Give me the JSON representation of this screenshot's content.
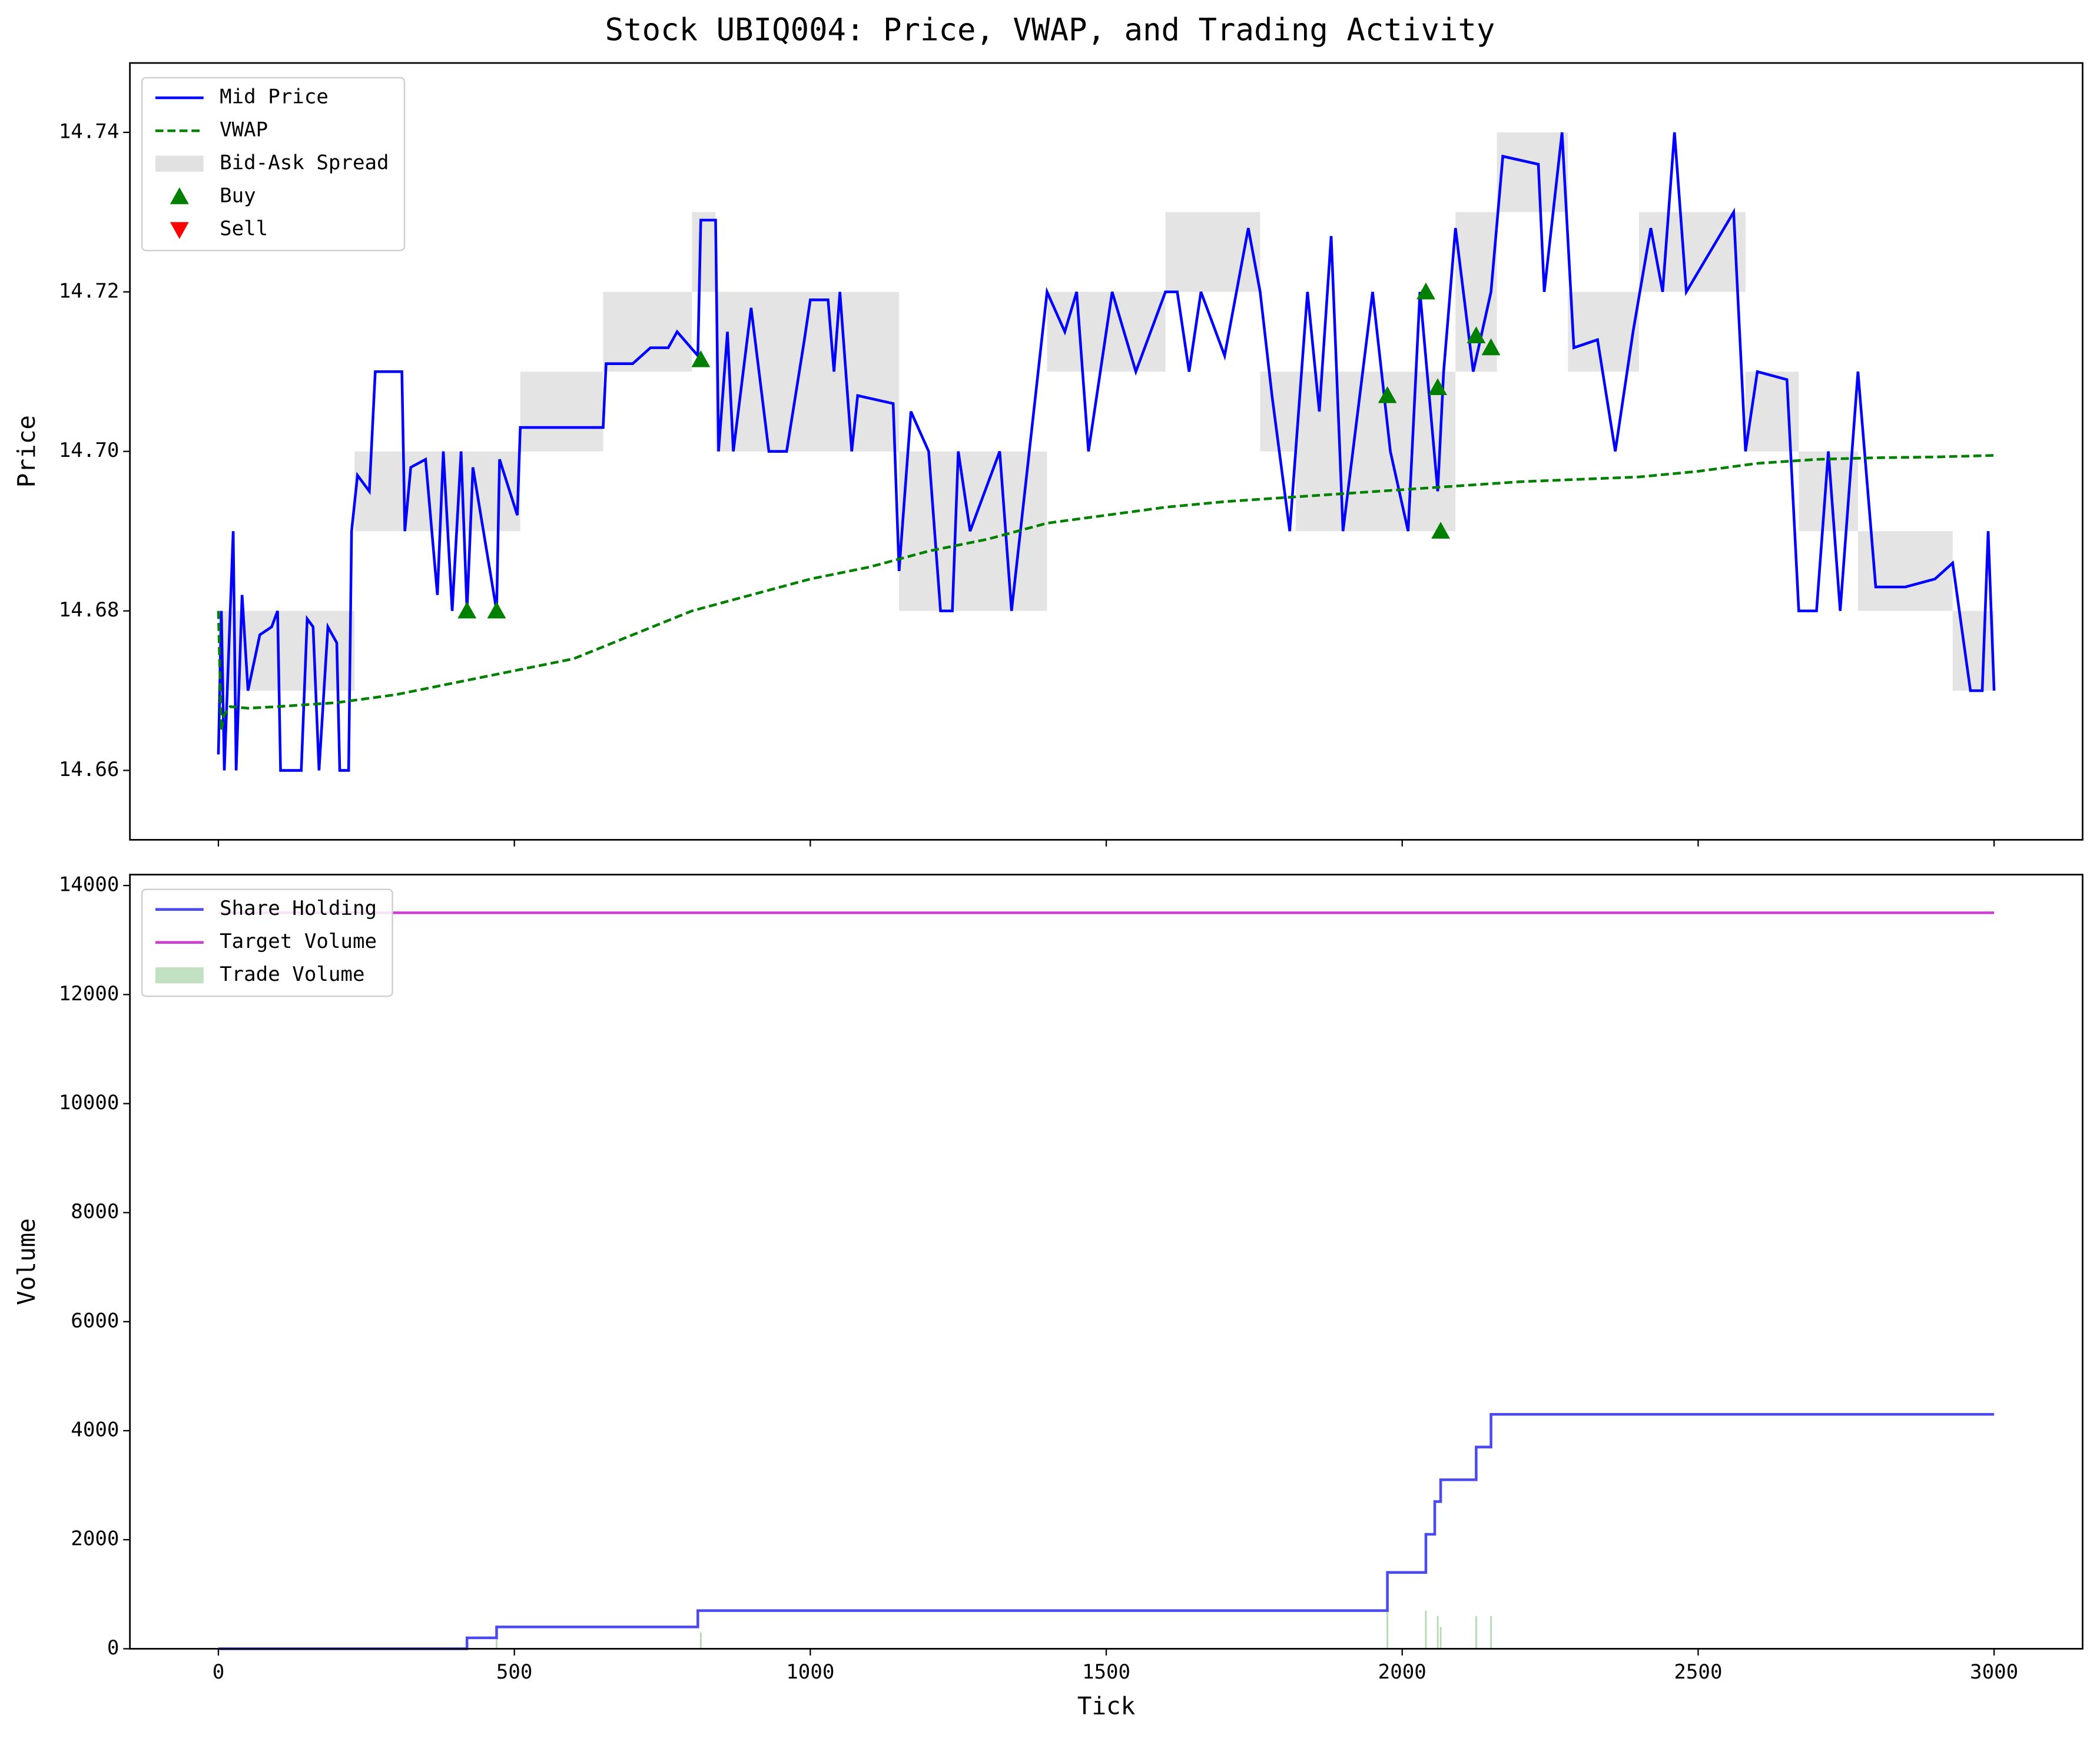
{
  "title": "Stock UBIQ004: Price, VWAP, and Trading Activity",
  "chart_data": [
    {
      "type": "line",
      "ylabel": "Price",
      "legend": "upper left",
      "show_xticklabels": false,
      "xlim": [
        -149.5,
        3149.5
      ],
      "ylim": [
        14.6513,
        14.7487
      ],
      "xticks": [
        0,
        500,
        1000,
        1500,
        2000,
        2500,
        3000
      ],
      "yticks": [
        14.66,
        14.68,
        {
          "value": 14.7,
          "label": "14.70"
        },
        14.72,
        14.74
      ],
      "band": {
        "name": "Bid-Ask Spread",
        "color": "#d9d9d9",
        "x": [
          0,
          230,
          230,
          510,
          510,
          650,
          650,
          800,
          800,
          840,
          840,
          1150,
          1150,
          1400,
          1400,
          1600,
          1600,
          1760,
          1760,
          1820,
          1820,
          2090,
          2090,
          2160,
          2160,
          2280,
          2280,
          2400,
          2400,
          2580,
          2580,
          2670,
          2670,
          2770,
          2770,
          2930,
          2930,
          3000
        ],
        "lower": [
          14.67,
          14.67,
          14.69,
          14.69,
          14.7,
          14.7,
          14.71,
          14.71,
          14.72,
          14.72,
          14.7,
          14.7,
          14.68,
          14.68,
          14.71,
          14.71,
          14.72,
          14.72,
          14.7,
          14.7,
          14.69,
          14.69,
          14.71,
          14.71,
          14.73,
          14.73,
          14.71,
          14.71,
          14.72,
          14.72,
          14.7,
          14.7,
          14.69,
          14.69,
          14.68,
          14.68,
          14.67,
          14.67
        ],
        "upper": [
          14.68,
          14.68,
          14.7,
          14.7,
          14.71,
          14.71,
          14.72,
          14.72,
          14.73,
          14.73,
          14.72,
          14.72,
          14.7,
          14.7,
          14.72,
          14.72,
          14.73,
          14.73,
          14.71,
          14.71,
          14.71,
          14.71,
          14.73,
          14.73,
          14.74,
          14.74,
          14.72,
          14.72,
          14.73,
          14.73,
          14.71,
          14.71,
          14.7,
          14.7,
          14.69,
          14.69,
          14.68,
          14.68
        ]
      },
      "series": [
        {
          "name": "Mid Price",
          "color": "#0000ff",
          "style": "solid",
          "x": [
            0,
            5,
            10,
            25,
            30,
            40,
            50,
            70,
            90,
            100,
            105,
            140,
            150,
            160,
            170,
            185,
            200,
            205,
            220,
            225,
            235,
            255,
            265,
            310,
            315,
            325,
            350,
            370,
            380,
            395,
            410,
            420,
            430,
            470,
            475,
            505,
            510,
            570,
            650,
            655,
            700,
            730,
            760,
            775,
            810,
            815,
            840,
            845,
            860,
            870,
            900,
            930,
            960,
            990,
            1000,
            1030,
            1040,
            1050,
            1070,
            1080,
            1140,
            1150,
            1170,
            1200,
            1220,
            1240,
            1250,
            1270,
            1320,
            1340,
            1370,
            1400,
            1430,
            1450,
            1470,
            1510,
            1550,
            1600,
            1620,
            1640,
            1660,
            1700,
            1740,
            1760,
            1780,
            1810,
            1840,
            1860,
            1880,
            1900,
            1950,
            1980,
            2010,
            2030,
            2060,
            2070,
            2090,
            2120,
            2150,
            2170,
            2230,
            2240,
            2270,
            2290,
            2330,
            2360,
            2390,
            2420,
            2440,
            2460,
            2480,
            2520,
            2560,
            2580,
            2600,
            2650,
            2670,
            2700,
            2720,
            2740,
            2770,
            2800,
            2850,
            2900,
            2930,
            2960,
            2980,
            2990,
            3000
          ],
          "values": [
            14.662,
            14.68,
            14.66,
            14.69,
            14.66,
            14.682,
            14.67,
            14.677,
            14.678,
            14.68,
            14.66,
            14.66,
            14.679,
            14.678,
            14.66,
            14.678,
            14.676,
            14.66,
            14.66,
            14.69,
            14.697,
            14.695,
            14.71,
            14.71,
            14.69,
            14.698,
            14.699,
            14.682,
            14.7,
            14.68,
            14.7,
            14.68,
            14.698,
            14.68,
            14.699,
            14.692,
            14.703,
            14.703,
            14.703,
            14.711,
            14.711,
            14.713,
            14.713,
            14.715,
            14.712,
            14.729,
            14.729,
            14.7,
            14.715,
            14.7,
            14.718,
            14.7,
            14.7,
            14.714,
            14.719,
            14.719,
            14.71,
            14.72,
            14.7,
            14.707,
            14.706,
            14.685,
            14.705,
            14.7,
            14.68,
            14.68,
            14.7,
            14.69,
            14.7,
            14.68,
            14.7,
            14.72,
            14.715,
            14.72,
            14.7,
            14.72,
            14.71,
            14.72,
            14.72,
            14.71,
            14.72,
            14.712,
            14.728,
            14.72,
            14.707,
            14.69,
            14.72,
            14.705,
            14.727,
            14.69,
            14.72,
            14.7,
            14.69,
            14.72,
            14.695,
            14.71,
            14.728,
            14.71,
            14.72,
            14.737,
            14.736,
            14.72,
            14.74,
            14.713,
            14.714,
            14.7,
            14.715,
            14.728,
            14.72,
            14.74,
            14.72,
            14.725,
            14.73,
            14.7,
            14.71,
            14.709,
            14.68,
            14.68,
            14.7,
            14.68,
            14.71,
            14.683,
            14.683,
            14.684,
            14.686,
            14.67,
            14.67,
            14.69,
            14.67
          ]
        },
        {
          "name": "VWAP",
          "color": "#008000",
          "style": "dashed",
          "x": [
            0,
            5,
            10,
            20,
            50,
            100,
            200,
            300,
            400,
            500,
            600,
            700,
            800,
            900,
            1000,
            1100,
            1200,
            1300,
            1400,
            1500,
            1600,
            1700,
            1800,
            1900,
            2000,
            2100,
            2200,
            2300,
            2400,
            2500,
            2600,
            2700,
            2800,
            2900,
            3000
          ],
          "values": [
            14.68,
            14.665,
            14.667,
            14.668,
            14.6678,
            14.668,
            14.6685,
            14.6695,
            14.671,
            14.6725,
            14.674,
            14.677,
            14.68,
            14.682,
            14.684,
            14.6855,
            14.6875,
            14.689,
            14.691,
            14.692,
            14.693,
            14.6937,
            14.6942,
            14.6947,
            14.6952,
            14.6957,
            14.6962,
            14.6965,
            14.6968,
            14.6975,
            14.6985,
            14.699,
            14.6992,
            14.6993,
            14.6995
          ]
        }
      ],
      "markers": [
        {
          "name": "Buy",
          "color": "#008000",
          "marker": "up",
          "x": [
            420,
            470,
            815,
            1975,
            2040,
            2060,
            2065,
            2125,
            2150
          ],
          "values": [
            14.68,
            14.68,
            14.7115,
            14.707,
            14.72,
            14.708,
            14.69,
            14.7145,
            14.713
          ]
        },
        {
          "name": "Sell",
          "color": "#ff0000",
          "marker": "down",
          "x": [],
          "values": []
        }
      ]
    },
    {
      "type": "line",
      "xlabel": "Tick",
      "ylabel": "Volume",
      "legend": "upper left",
      "show_xticklabels": true,
      "xlim": [
        -149.5,
        3149.5
      ],
      "ylim": [
        0,
        14200
      ],
      "xticks": [
        0,
        500,
        1000,
        1500,
        2000,
        2500,
        3000
      ],
      "yticks": [
        0,
        2000,
        4000,
        6000,
        8000,
        10000,
        12000,
        14000
      ],
      "series": [
        {
          "name": "Share Holding",
          "color": "#4a4af0",
          "style": "solid",
          "x": [
            0,
            420,
            420,
            470,
            470,
            810,
            810,
            1975,
            1975,
            2040,
            2040,
            2055,
            2055,
            2065,
            2065,
            2125,
            2125,
            2150,
            2150,
            3000
          ],
          "values": [
            0,
            0,
            200,
            200,
            400,
            400,
            700,
            700,
            1400,
            1400,
            2100,
            2100,
            2700,
            2700,
            3100,
            3100,
            3700,
            3700,
            4300,
            4300
          ]
        },
        {
          "name": "Target Volume",
          "color": "#d040d0",
          "style": "solid",
          "x": [
            0,
            3000
          ],
          "values": [
            13500,
            13500
          ]
        }
      ],
      "bars": {
        "name": "Trade Volume",
        "color": "#b3d9b3",
        "x": [
          420,
          470,
          815,
          1975,
          2040,
          2060,
          2065,
          2125,
          2150
        ],
        "values": [
          200,
          200,
          300,
          700,
          700,
          600,
          400,
          600,
          600
        ]
      }
    }
  ]
}
